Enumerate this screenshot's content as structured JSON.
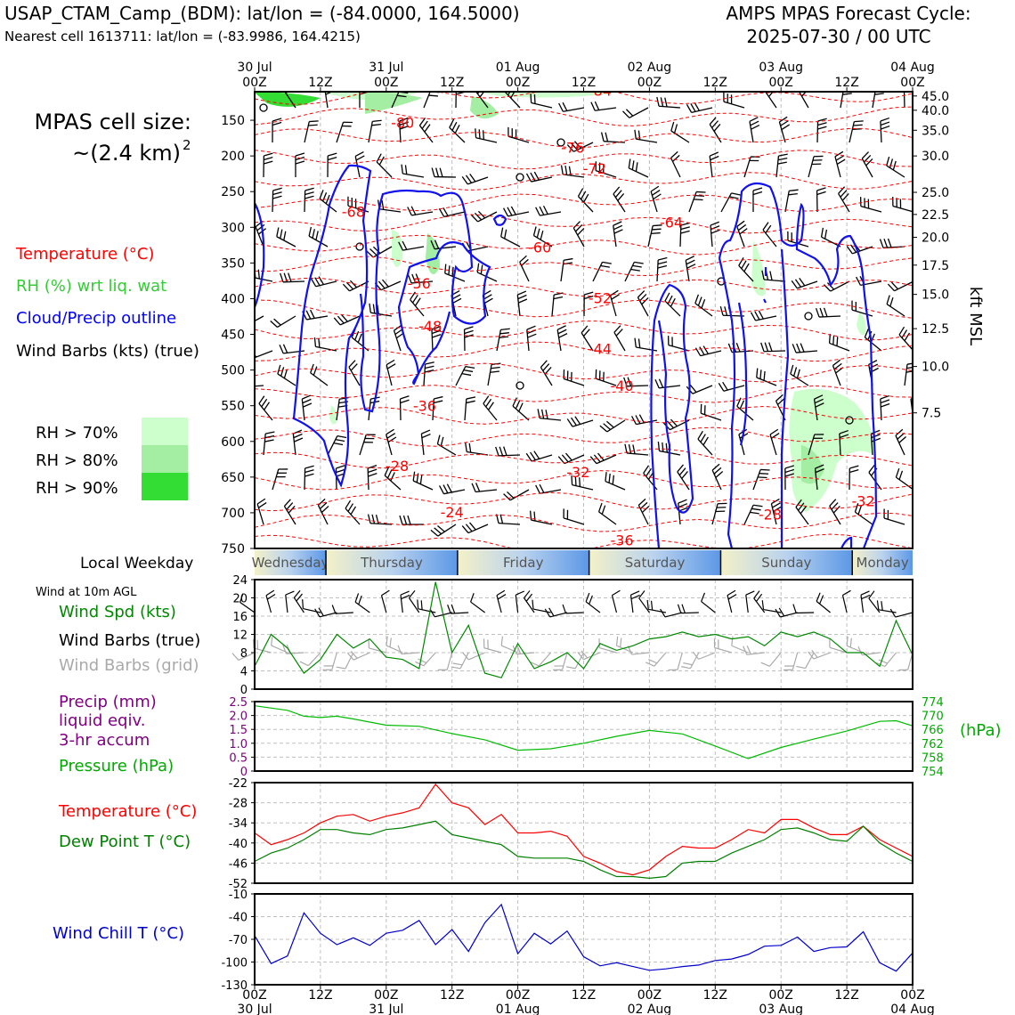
{
  "header": {
    "station_title": "USAP_CTAM_Camp_(BDM): lat/lon = (-84.0000, 164.5000)",
    "nearest_cell": "Nearest cell 1613711: lat/lon = (-83.9986, 164.4215)",
    "forecast_line1": "AMPS MPAS Forecast Cycle:",
    "forecast_line2": "2025-07-30 / 00 UTC"
  },
  "legend": {
    "cell_size_label": "MPAS cell size:",
    "cell_size_value": "~(2.4 km)",
    "cell_size_exp": "2",
    "temperature": "Temperature (°C)",
    "rh": "RH (%) wrt liq. wat",
    "cloud": "Cloud/Precip outline",
    "wind_barbs": "Wind Barbs (kts) (true)",
    "rh70": "RH > 70%",
    "rh80": "RH > 80%",
    "rh90": "RH > 90%",
    "colors": {
      "rh70": "#ccffcc",
      "rh80": "#a3eea3",
      "rh90": "#33dd33",
      "temperature": "#ff0000",
      "rh": "#33cc33",
      "cloud": "#0000ff"
    }
  },
  "time_axis": {
    "top_dates": [
      "30 Jul",
      "31 Jul",
      "01 Aug",
      "02 Aug",
      "03 Aug",
      "04 Aug"
    ],
    "hour_labels": [
      "00Z",
      "12Z",
      "00Z",
      "12Z",
      "00Z",
      "12Z",
      "00Z",
      "12Z",
      "00Z",
      "12Z",
      "00Z"
    ]
  },
  "weekdays": {
    "label": "Local Weekday",
    "days": [
      "Wednesday",
      "Thursday",
      "Friday",
      "Saturday",
      "Sunday",
      "Monday"
    ]
  },
  "chart_data": [
    {
      "type": "heatmap",
      "name": "cross-section",
      "xlim_hours": [
        0,
        120
      ],
      "left_ylabel_ticks": [
        150,
        200,
        250,
        300,
        350,
        400,
        450,
        500,
        550,
        600,
        650,
        700,
        750
      ],
      "ylim_hPa": [
        750,
        110
      ],
      "right_ylabel": "kft MSL",
      "right_ticks": [
        "45.0",
        "40.0",
        "35.0",
        "30.0",
        "25.0",
        "22.5",
        "20.0",
        "17.5",
        "15.0",
        "12.5",
        "10.0",
        "7.5"
      ],
      "right_tick_hPa": [
        116,
        136,
        164,
        200,
        251,
        282,
        314,
        353,
        394,
        442,
        495,
        560
      ],
      "temperature_contour_labels": [
        {
          "text": "-84",
          "t": 63,
          "p": 108
        },
        {
          "text": "-80",
          "t": 27,
          "p": 153
        },
        {
          "text": "-76",
          "t": 58,
          "p": 188
        },
        {
          "text": "-72",
          "t": 62,
          "p": 217
        },
        {
          "text": "-68",
          "t": 18,
          "p": 278
        },
        {
          "text": "-64",
          "t": 76,
          "p": 293
        },
        {
          "text": "-60",
          "t": 52,
          "p": 328
        },
        {
          "text": "-56",
          "t": 30,
          "p": 378
        },
        {
          "text": "-52",
          "t": 63,
          "p": 399
        },
        {
          "text": "-48",
          "t": 32,
          "p": 438
        },
        {
          "text": "-44",
          "t": 63,
          "p": 470
        },
        {
          "text": "-40",
          "t": 67,
          "p": 522
        },
        {
          "text": "-36",
          "t": 31,
          "p": 550
        },
        {
          "text": "-32",
          "t": 59,
          "p": 643
        },
        {
          "text": "-32",
          "t": 111,
          "p": 683
        },
        {
          "text": "-28",
          "t": 26,
          "p": 634
        },
        {
          "text": "-28",
          "t": 94,
          "p": 702
        },
        {
          "text": "-24",
          "t": 36,
          "p": 699
        },
        {
          "text": "-36",
          "t": 67,
          "p": 738
        }
      ]
    },
    {
      "type": "line",
      "name": "wind",
      "title": "Wind at 10m AGL",
      "legend": [
        "Wind Spd (kts)",
        "Wind Barbs (true)",
        "Wind Barbs (grid)"
      ],
      "ylim": [
        0,
        24
      ],
      "yticks": [
        0,
        4,
        8,
        12,
        16,
        20,
        24
      ],
      "x_hours": [
        0,
        3,
        6,
        9,
        12,
        15,
        18,
        21,
        24,
        27,
        30,
        33,
        36,
        39,
        42,
        45,
        48,
        51,
        54,
        57,
        60,
        63,
        66,
        69,
        72,
        75,
        78,
        81,
        84,
        87,
        90,
        93,
        96,
        99,
        102,
        105,
        108,
        111,
        114,
        117,
        120
      ],
      "series": [
        {
          "name": "Wind Spd (kts)",
          "color": "#008800",
          "values": [
            5,
            12,
            9,
            3.5,
            6.5,
            12,
            9,
            11,
            7,
            6.5,
            4.5,
            23.5,
            8,
            14,
            3.5,
            2.5,
            10,
            4.5,
            6,
            8,
            4.5,
            10,
            8.5,
            9.5,
            11,
            11.5,
            12.5,
            11.5,
            12,
            11,
            11.5,
            9.5,
            12.5,
            11.5,
            12.5,
            11,
            8,
            8,
            5,
            15,
            7.5
          ]
        }
      ]
    },
    {
      "type": "line",
      "name": "precip-pressure",
      "legend": [
        "Precip (mm)",
        "liquid eqiv.",
        "3-hr accum",
        "Pressure (hPa)"
      ],
      "left_ylim": [
        0,
        2.5
      ],
      "left_yticks": [
        "0",
        "0.5",
        "1.0",
        "1.5",
        "2.0",
        "2.5"
      ],
      "right_ylim": [
        754,
        774
      ],
      "right_yticks": [
        "754",
        "758",
        "762",
        "766",
        "770",
        "774"
      ],
      "right_ylabel": "(hPa)",
      "x_hours": [
        0,
        6,
        9,
        12,
        15,
        18,
        24,
        30,
        36,
        42,
        48,
        54,
        60,
        66,
        72,
        78,
        84,
        90,
        96,
        102,
        108,
        114,
        117,
        120
      ],
      "series": [
        {
          "name": "Pressure (hPa)",
          "color": "#00bb00",
          "values": [
            772.8,
            771.5,
            769.8,
            769.4,
            769.8,
            769.0,
            767.2,
            766.9,
            764.8,
            763.0,
            760.0,
            760.4,
            762.0,
            764.0,
            765.7,
            764.7,
            761.2,
            757.6,
            760.8,
            763.2,
            765.5,
            768.3,
            768.5,
            767.0
          ]
        },
        {
          "name": "Precip (mm)",
          "color": "#800080",
          "values": []
        }
      ]
    },
    {
      "type": "line",
      "name": "temperature-dewpoint",
      "legend": [
        "Temperature (°C)",
        "Dew Point T (°C)"
      ],
      "ylim": [
        -52,
        -22
      ],
      "yticks": [
        -52,
        -46,
        -40,
        -34,
        -28,
        -22
      ],
      "x_hours": [
        0,
        3,
        6,
        9,
        12,
        15,
        18,
        21,
        24,
        27,
        30,
        33,
        36,
        39,
        42,
        45,
        48,
        51,
        54,
        57,
        60,
        63,
        66,
        69,
        72,
        75,
        78,
        81,
        84,
        87,
        90,
        93,
        96,
        99,
        102,
        105,
        108,
        111,
        114,
        117,
        120
      ],
      "series": [
        {
          "name": "Temperature (°C)",
          "color": "#ff0000",
          "values": [
            -37,
            -40.5,
            -39,
            -37,
            -34,
            -32,
            -31.5,
            -33.5,
            -32,
            -31,
            -29.5,
            -22.5,
            -28,
            -29.5,
            -34.5,
            -31.5,
            -37,
            -37,
            -36.5,
            -38,
            -44,
            -46,
            -48.5,
            -49.5,
            -48,
            -44,
            -41,
            -41.5,
            -41.5,
            -39,
            -36,
            -37,
            -33,
            -33,
            -35.5,
            -37.5,
            -37.5,
            -35,
            -39,
            -41.5,
            -44
          ]
        },
        {
          "name": "Dew Point T (°C)",
          "color": "#008000",
          "values": [
            -45.5,
            -43,
            -41.5,
            -39,
            -36,
            -36,
            -37,
            -37.5,
            -36,
            -35.5,
            -34.5,
            -33.5,
            -37.5,
            -38.5,
            -39.5,
            -40.5,
            -44,
            -44.5,
            -44.5,
            -44.5,
            -45.5,
            -48,
            -50,
            -50,
            -50.5,
            -50,
            -46,
            -45.5,
            -45.5,
            -43,
            -41,
            -39,
            -36,
            -35.5,
            -37,
            -39,
            -39.5,
            -35,
            -40,
            -43,
            -45.5
          ]
        }
      ]
    },
    {
      "type": "line",
      "name": "wind-chill",
      "legend": [
        "Wind Chill T (°C)"
      ],
      "ylim": [
        -130,
        -10
      ],
      "yticks": [
        -130,
        -100,
        -70,
        -40,
        -10
      ],
      "x_hours": [
        0,
        3,
        6,
        9,
        12,
        15,
        18,
        21,
        24,
        27,
        30,
        33,
        36,
        39,
        42,
        45,
        48,
        51,
        54,
        57,
        60,
        63,
        66,
        69,
        72,
        75,
        78,
        81,
        84,
        87,
        90,
        93,
        96,
        99,
        102,
        105,
        108,
        111,
        114,
        117,
        120
      ],
      "series": [
        {
          "name": "Wind Chill T (°C)",
          "color": "#0000cc",
          "values": [
            -65,
            -102,
            -92,
            -35,
            -62,
            -77,
            -68,
            -78,
            -62,
            -58,
            -45,
            -77,
            -57,
            -86,
            -48,
            -24,
            -89,
            -62,
            -76,
            -59,
            -93,
            -105,
            -101,
            -106,
            -111,
            -109,
            -106,
            -104,
            -98,
            -96,
            -90,
            -79,
            -78,
            -67,
            -86,
            -81,
            -80,
            -60,
            -101,
            -112,
            -88
          ]
        }
      ]
    }
  ]
}
